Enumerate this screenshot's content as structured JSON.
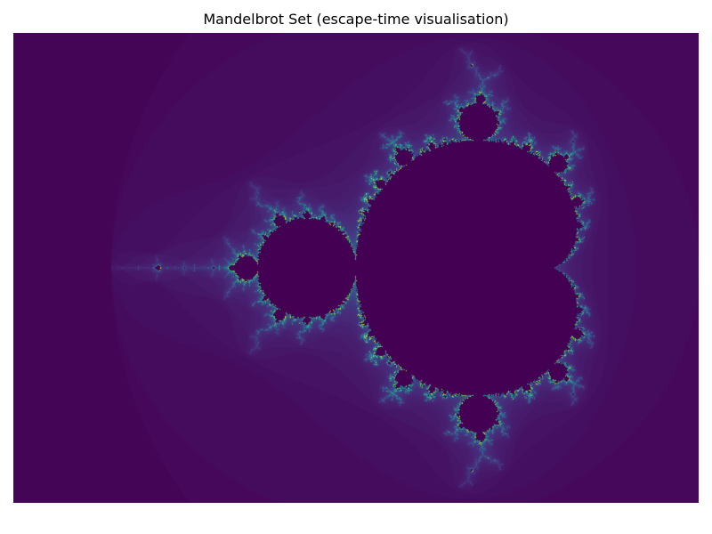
{
  "figure": {
    "title": "Mandelbrot Set (escape-time visualisation)"
  },
  "render": {
    "real_range": [
      -2.5,
      1.0
    ],
    "imag_range": [
      -1.2,
      1.2
    ],
    "max_iterations": 100,
    "colormap": "viridis",
    "colormap_stops": [
      "#440154",
      "#482878",
      "#3e4989",
      "#31688e",
      "#26828e",
      "#1f9e89",
      "#35b779",
      "#6ece58",
      "#b5de2b",
      "#fde725"
    ],
    "interior_color": "#440154"
  }
}
